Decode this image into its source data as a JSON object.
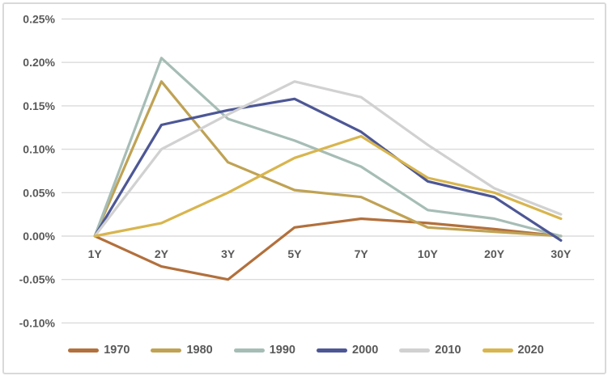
{
  "chart_data": {
    "type": "line",
    "title": "",
    "xlabel": "",
    "ylabel": "",
    "categories": [
      "1Y",
      "2Y",
      "3Y",
      "5Y",
      "7Y",
      "10Y",
      "20Y",
      "30Y"
    ],
    "series": [
      {
        "name": "1970",
        "color": "#b2703c",
        "values": [
          0.0,
          -0.035,
          -0.05,
          0.01,
          0.02,
          0.015,
          0.008,
          0.0
        ]
      },
      {
        "name": "1980",
        "color": "#bfa254",
        "values": [
          0.0,
          0.178,
          0.085,
          0.053,
          0.045,
          0.01,
          0.005,
          0.0
        ]
      },
      {
        "name": "1990",
        "color": "#a6bdb6",
        "values": [
          0.0,
          0.205,
          0.135,
          0.11,
          0.08,
          0.03,
          0.02,
          0.0
        ]
      },
      {
        "name": "2000",
        "color": "#4d5795",
        "values": [
          0.0,
          0.128,
          0.145,
          0.158,
          0.12,
          0.063,
          0.045,
          -0.005
        ]
      },
      {
        "name": "2010",
        "color": "#d1d1d1",
        "values": [
          0.0,
          0.1,
          0.14,
          0.178,
          0.16,
          0.105,
          0.055,
          0.025
        ]
      },
      {
        "name": "2020",
        "color": "#d8b54e",
        "values": [
          0.0,
          0.015,
          0.05,
          0.09,
          0.115,
          0.067,
          0.05,
          0.02
        ]
      }
    ],
    "y_axis": {
      "tick_labels": [
        "0.25%",
        "0.20%",
        "0.15%",
        "0.10%",
        "0.05%",
        "0.00%",
        "-0.05%",
        "-0.10%"
      ],
      "tick_values": [
        0.25,
        0.2,
        0.15,
        0.1,
        0.05,
        0.0,
        -0.05,
        -0.1
      ],
      "min": -0.1,
      "max": 0.25,
      "format": "percent_two_decimals"
    },
    "grid": "horizontal",
    "legend_position": "bottom",
    "legend_entries": [
      "1970",
      "1980",
      "1990",
      "2000",
      "2010",
      "2020"
    ]
  },
  "style": {
    "gridline_color": "#dbdbdb",
    "border_color": "#d9d9d9",
    "text_color": "#595959",
    "background_color": "#ffffff",
    "line_width": 3.2
  }
}
